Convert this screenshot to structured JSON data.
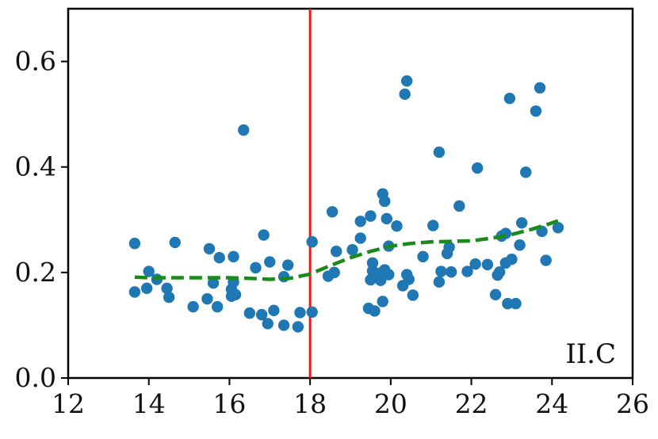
{
  "chart_data": {
    "type": "scatter",
    "xlim": [
      12,
      26
    ],
    "ylim": [
      0.0,
      0.7
    ],
    "x_ticks": [
      12,
      14,
      16,
      18,
      20,
      22,
      24,
      26
    ],
    "y_ticks": [
      0.0,
      0.2,
      0.4,
      0.6
    ],
    "x_tick_labels": [
      "12",
      "14",
      "16",
      "18",
      "20",
      "22",
      "24",
      "26"
    ],
    "y_tick_labels": [
      "0.0",
      "0.2",
      "0.4",
      "0.6"
    ],
    "grid": false,
    "annotation": "II.C",
    "vertical_line": {
      "x": 18,
      "color": "#e41a1c"
    },
    "colors": {
      "points": "#1f77b4",
      "trend": "#1a8a1a",
      "vline": "#e41a1c"
    },
    "series": [
      {
        "type": "scatter",
        "x": [
          13.65,
          13.65,
          13.95,
          14.0,
          14.2,
          14.45,
          14.5,
          14.65,
          15.1,
          15.45,
          15.5,
          15.6,
          15.7,
          15.75,
          16.05,
          16.05,
          16.1,
          16.1,
          16.15,
          16.35,
          16.5,
          16.65,
          16.8,
          16.85,
          16.95,
          17.0,
          17.1,
          17.35,
          17.35,
          17.45,
          17.7,
          17.75,
          18.05,
          18.05,
          18.45,
          18.55,
          18.6,
          18.65,
          19.05,
          19.25,
          19.25,
          19.45,
          19.5,
          19.5,
          19.55,
          19.55,
          19.6,
          19.65,
          19.75,
          19.75,
          19.8,
          19.8,
          19.85,
          19.85,
          19.9,
          19.95,
          19.95,
          20.15,
          20.3,
          20.35,
          20.4,
          20.4,
          20.45,
          20.55,
          20.8,
          21.05,
          21.2,
          21.2,
          21.25,
          21.4,
          21.45,
          21.5,
          21.7,
          21.9,
          22.1,
          22.15,
          22.4,
          22.6,
          22.65,
          22.7,
          22.75,
          22.85,
          22.85,
          22.9,
          22.95,
          23.0,
          23.1,
          23.2,
          23.25,
          23.35,
          23.6,
          23.7,
          23.75,
          23.85,
          24.15
        ],
        "y": [
          0.255,
          0.163,
          0.17,
          0.202,
          0.187,
          0.17,
          0.153,
          0.257,
          0.135,
          0.15,
          0.245,
          0.18,
          0.135,
          0.228,
          0.155,
          0.168,
          0.182,
          0.23,
          0.158,
          0.47,
          0.123,
          0.209,
          0.12,
          0.271,
          0.103,
          0.22,
          0.128,
          0.192,
          0.1,
          0.214,
          0.097,
          0.124,
          0.258,
          0.125,
          0.193,
          0.315,
          0.2,
          0.24,
          0.243,
          0.297,
          0.265,
          0.132,
          0.307,
          0.186,
          0.203,
          0.218,
          0.127,
          0.195,
          0.185,
          0.199,
          0.145,
          0.349,
          0.335,
          0.205,
          0.302,
          0.196,
          0.25,
          0.288,
          0.175,
          0.538,
          0.563,
          0.196,
          0.187,
          0.157,
          0.23,
          0.289,
          0.428,
          0.182,
          0.202,
          0.236,
          0.248,
          0.201,
          0.326,
          0.202,
          0.216,
          0.398,
          0.215,
          0.158,
          0.195,
          0.201,
          0.269,
          0.218,
          0.274,
          0.141,
          0.53,
          0.225,
          0.141,
          0.252,
          0.294,
          0.39,
          0.506,
          0.55,
          0.278,
          0.223,
          0.285
        ]
      },
      {
        "type": "line",
        "style": "dashed",
        "x": [
          13.65,
          14.0,
          14.5,
          15.0,
          15.5,
          16.0,
          16.5,
          17.0,
          17.5,
          18.0,
          18.5,
          19.0,
          19.5,
          20.0,
          20.5,
          21.0,
          21.5,
          22.0,
          22.5,
          23.0,
          23.5,
          24.0,
          24.15
        ],
        "y": [
          0.191,
          0.19,
          0.19,
          0.19,
          0.19,
          0.19,
          0.189,
          0.187,
          0.189,
          0.197,
          0.213,
          0.228,
          0.24,
          0.25,
          0.255,
          0.258,
          0.259,
          0.26,
          0.265,
          0.272,
          0.282,
          0.294,
          0.298
        ]
      }
    ]
  }
}
